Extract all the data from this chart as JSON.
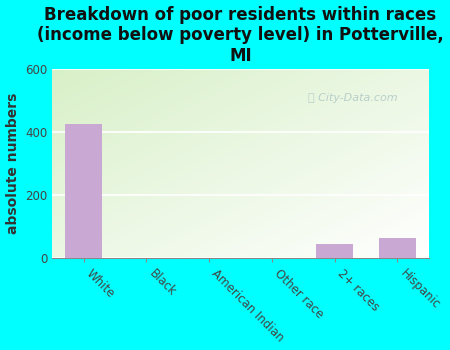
{
  "title": "Breakdown of poor residents within races\n(income below poverty level) in Potterville,\nMI",
  "categories": [
    "White",
    "Black",
    "American Indian",
    "Other race",
    "2+ races",
    "Hispanic"
  ],
  "values": [
    425,
    0,
    0,
    0,
    45,
    65
  ],
  "bar_color": "#c9a8d4",
  "ylabel": "absolute numbers",
  "ylim": [
    0,
    600
  ],
  "yticks": [
    0,
    200,
    400,
    600
  ],
  "background_color": "#00ffff",
  "title_fontsize": 12,
  "ylabel_fontsize": 10,
  "tick_fontsize": 8.5,
  "watermark": "City-Data.com"
}
